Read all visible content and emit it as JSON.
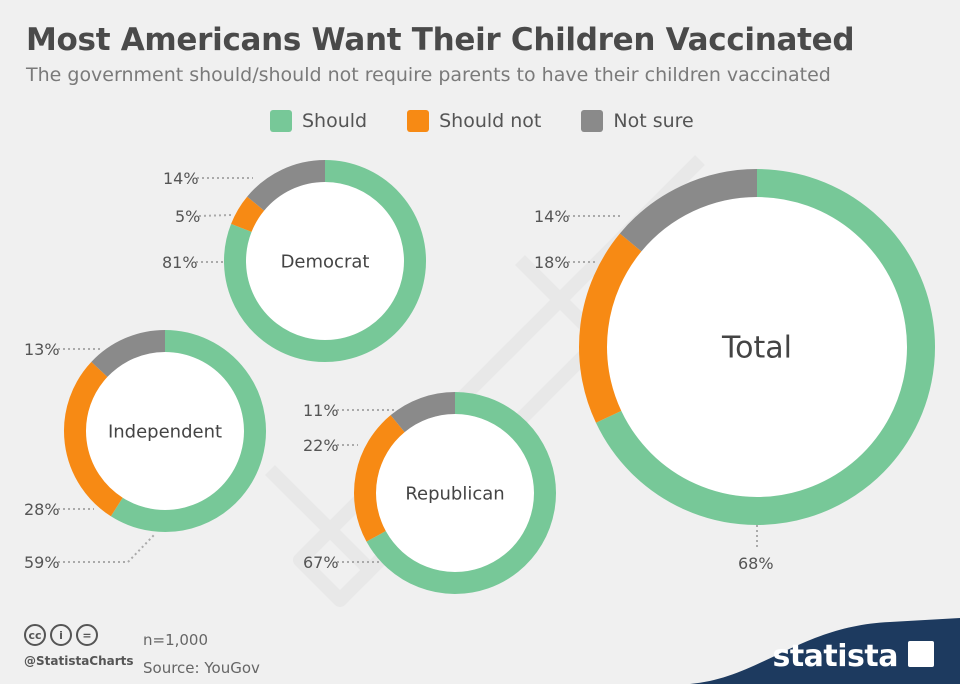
{
  "header": {
    "title": "Most Americans Want Their Children Vaccinated",
    "subtitle": "The government should/should not require parents to have their children vaccinated"
  },
  "legend": [
    {
      "label": "Should",
      "color": "#77c898"
    },
    {
      "label": "Should not",
      "color": "#f78a14"
    },
    {
      "label": "Not sure",
      "color": "#8a8a8a"
    }
  ],
  "chart_data": {
    "type": "donut",
    "categories": [
      "Should",
      "Should not",
      "Not sure"
    ],
    "colors": [
      "#77c898",
      "#f78a14",
      "#8a8a8a"
    ],
    "series": [
      {
        "name": "Democrat",
        "values": [
          81,
          5,
          14
        ],
        "labels": [
          "81%",
          "5%",
          "14%"
        ]
      },
      {
        "name": "Independent",
        "values": [
          59,
          28,
          13
        ],
        "labels": [
          "59%",
          "28%",
          "13%"
        ]
      },
      {
        "name": "Republican",
        "values": [
          67,
          22,
          11
        ],
        "labels": [
          "67%",
          "22%",
          "11%"
        ]
      },
      {
        "name": "Total",
        "values": [
          68,
          18,
          14
        ],
        "labels": [
          "68%",
          "18%",
          "14%"
        ]
      }
    ]
  },
  "footer": {
    "handle": "@StatistaCharts",
    "sample": "n=1,000",
    "source": "Source: YouGov",
    "brand": "statista",
    "license_icons": [
      "cc-icon",
      "by-icon",
      "nd-icon"
    ],
    "license_glyphs": [
      "cc",
      "i",
      "="
    ]
  },
  "theme": {
    "background": "#f0f0f0",
    "brand_color": "#1d3a5f"
  }
}
